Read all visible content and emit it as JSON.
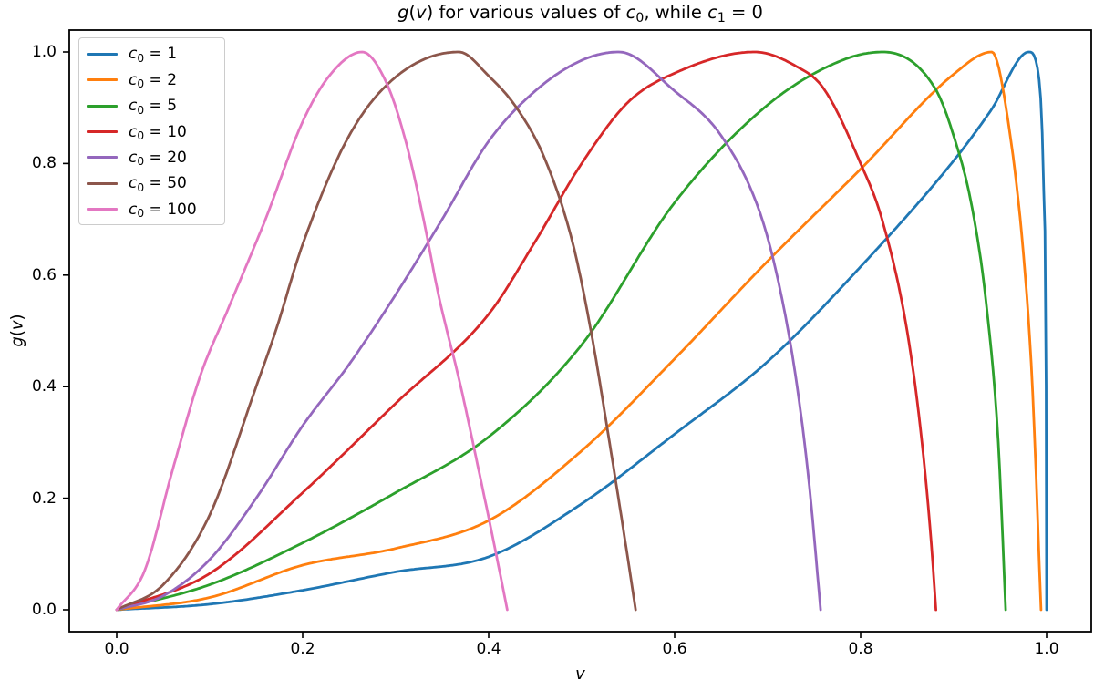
{
  "title_runs": [
    {
      "t": "g",
      "i": true
    },
    {
      "t": "("
    },
    {
      "t": "v",
      "i": true
    },
    {
      "t": ") for various values of "
    },
    {
      "t": "c",
      "i": true
    },
    {
      "t": "0",
      "sub": true
    },
    {
      "t": ", while "
    },
    {
      "t": "c",
      "i": true
    },
    {
      "t": "1",
      "sub": true
    },
    {
      "t": " = 0"
    }
  ],
  "axes": {
    "x": {
      "label_runs": [
        {
          "t": "v",
          "i": true
        }
      ],
      "ticks": [
        0.0,
        0.2,
        0.4,
        0.6,
        0.8,
        1.0
      ],
      "tick_labels": [
        "0.0",
        "0.2",
        "0.4",
        "0.6",
        "0.8",
        "1.0"
      ]
    },
    "y": {
      "label_runs": [
        {
          "t": "g",
          "i": true
        },
        {
          "t": "("
        },
        {
          "t": "v",
          "i": true
        },
        {
          "t": ")"
        }
      ],
      "ticks": [
        0.0,
        0.2,
        0.4,
        0.6,
        0.8,
        1.0
      ],
      "tick_labels": [
        "0.0",
        "0.2",
        "0.4",
        "0.6",
        "0.8",
        "1.0"
      ]
    }
  },
  "legend": {
    "entries": [
      {
        "color": "#1f77b4",
        "label_runs": [
          {
            "t": "c",
            "i": true
          },
          {
            "t": "0",
            "sub": true
          },
          {
            "t": " = 1"
          }
        ]
      },
      {
        "color": "#ff7f0e",
        "label_runs": [
          {
            "t": "c",
            "i": true
          },
          {
            "t": "0",
            "sub": true
          },
          {
            "t": " = 2"
          }
        ]
      },
      {
        "color": "#2ca02c",
        "label_runs": [
          {
            "t": "c",
            "i": true
          },
          {
            "t": "0",
            "sub": true
          },
          {
            "t": " = 5"
          }
        ]
      },
      {
        "color": "#d62728",
        "label_runs": [
          {
            "t": "c",
            "i": true
          },
          {
            "t": "0",
            "sub": true
          },
          {
            "t": " = 10"
          }
        ]
      },
      {
        "color": "#9467bd",
        "label_runs": [
          {
            "t": "c",
            "i": true
          },
          {
            "t": "0",
            "sub": true
          },
          {
            "t": " = 20"
          }
        ]
      },
      {
        "color": "#8c564b",
        "label_runs": [
          {
            "t": "c",
            "i": true
          },
          {
            "t": "0",
            "sub": true
          },
          {
            "t": " = 50"
          }
        ]
      },
      {
        "color": "#e377c2",
        "label_runs": [
          {
            "t": "c",
            "i": true
          },
          {
            "t": "0",
            "sub": true
          },
          {
            "t": " = 100"
          }
        ]
      }
    ]
  },
  "chart_data": {
    "type": "line",
    "title": "g(v) for various values of c0, while c1 = 0",
    "xlabel": "v",
    "ylabel": "g(v)",
    "xlim": [
      -0.051,
      1.048
    ],
    "ylim": [
      -0.039,
      1.039
    ],
    "xticks": [
      0.0,
      0.2,
      0.4,
      0.6,
      0.8,
      1.0
    ],
    "yticks": [
      0.0,
      0.2,
      0.4,
      0.6,
      0.8,
      1.0
    ],
    "grid": false,
    "legend_position": "upper left",
    "series": [
      {
        "name": "c0 = 1",
        "color": "#1f77b4",
        "peak": [
          0.981,
          1.0
        ],
        "zero_at": 1.0,
        "points": [
          [
            0,
            0
          ],
          [
            0.1,
            0.01
          ],
          [
            0.2,
            0.035
          ],
          [
            0.3,
            0.068
          ],
          [
            0.4,
            0.095
          ],
          [
            0.5,
            0.19
          ],
          [
            0.6,
            0.315
          ],
          [
            0.7,
            0.445
          ],
          [
            0.8,
            0.615
          ],
          [
            0.9,
            0.805
          ],
          [
            0.94,
            0.895
          ],
          [
            0.981,
            1.0
          ],
          [
            0.992,
            0.95
          ],
          [
            0.997,
            0.75
          ],
          [
            0.9995,
            0.4
          ],
          [
            1.0,
            0
          ]
        ]
      },
      {
        "name": "c0 = 2",
        "color": "#ff7f0e",
        "peak": [
          0.941,
          1.0
        ],
        "zero_at": 0.994,
        "points": [
          [
            0,
            0
          ],
          [
            0.1,
            0.022
          ],
          [
            0.2,
            0.08
          ],
          [
            0.3,
            0.11
          ],
          [
            0.4,
            0.16
          ],
          [
            0.5,
            0.285
          ],
          [
            0.6,
            0.45
          ],
          [
            0.7,
            0.625
          ],
          [
            0.8,
            0.79
          ],
          [
            0.9,
            0.96
          ],
          [
            0.941,
            1.0
          ],
          [
            0.96,
            0.86
          ],
          [
            0.977,
            0.6
          ],
          [
            0.985,
            0.39
          ],
          [
            0.994,
            0
          ]
        ]
      },
      {
        "name": "c0 = 5",
        "color": "#2ca02c",
        "peak": [
          0.824,
          1.0
        ],
        "zero_at": 0.956,
        "points": [
          [
            0,
            0
          ],
          [
            0.1,
            0.045
          ],
          [
            0.2,
            0.12
          ],
          [
            0.3,
            0.21
          ],
          [
            0.4,
            0.31
          ],
          [
            0.5,
            0.475
          ],
          [
            0.6,
            0.73
          ],
          [
            0.7,
            0.905
          ],
          [
            0.78,
            0.985
          ],
          [
            0.824,
            1.0
          ],
          [
            0.88,
            0.935
          ],
          [
            0.9,
            0.85
          ],
          [
            0.92,
            0.72
          ],
          [
            0.935,
            0.55
          ],
          [
            0.948,
            0.3
          ],
          [
            0.956,
            0
          ]
        ]
      },
      {
        "name": "c0 = 10",
        "color": "#d62728",
        "peak": [
          0.686,
          1.0
        ],
        "zero_at": 0.881,
        "points": [
          [
            0,
            0
          ],
          [
            0.1,
            0.065
          ],
          [
            0.2,
            0.21
          ],
          [
            0.3,
            0.37
          ],
          [
            0.4,
            0.53
          ],
          [
            0.45,
            0.66
          ],
          [
            0.5,
            0.8
          ],
          [
            0.55,
            0.91
          ],
          [
            0.6,
            0.962
          ],
          [
            0.686,
            1.0
          ],
          [
            0.73,
            0.975
          ],
          [
            0.76,
            0.935
          ],
          [
            0.8,
            0.8
          ],
          [
            0.823,
            0.7
          ],
          [
            0.85,
            0.5
          ],
          [
            0.866,
            0.3
          ],
          [
            0.876,
            0.12
          ],
          [
            0.881,
            0
          ]
        ]
      },
      {
        "name": "c0 = 20",
        "color": "#9467bd",
        "peak": [
          0.54,
          1.0
        ],
        "zero_at": 0.757,
        "points": [
          [
            0,
            0
          ],
          [
            0.05,
            0.025
          ],
          [
            0.1,
            0.09
          ],
          [
            0.15,
            0.2
          ],
          [
            0.2,
            0.33
          ],
          [
            0.25,
            0.44
          ],
          [
            0.3,
            0.565
          ],
          [
            0.35,
            0.7
          ],
          [
            0.4,
            0.84
          ],
          [
            0.45,
            0.93
          ],
          [
            0.5,
            0.985
          ],
          [
            0.54,
            1.0
          ],
          [
            0.6,
            0.93
          ],
          [
            0.65,
            0.85
          ],
          [
            0.69,
            0.72
          ],
          [
            0.71,
            0.6
          ],
          [
            0.73,
            0.42
          ],
          [
            0.745,
            0.22
          ],
          [
            0.757,
            0
          ]
        ]
      },
      {
        "name": "c0 = 50",
        "color": "#8c564b",
        "peak": [
          0.368,
          1.0
        ],
        "zero_at": 0.558,
        "points": [
          [
            0,
            0
          ],
          [
            0.05,
            0.045
          ],
          [
            0.1,
            0.17
          ],
          [
            0.15,
            0.4
          ],
          [
            0.171,
            0.5
          ],
          [
            0.2,
            0.655
          ],
          [
            0.25,
            0.85
          ],
          [
            0.3,
            0.955
          ],
          [
            0.368,
            1.0
          ],
          [
            0.4,
            0.957
          ],
          [
            0.43,
            0.9
          ],
          [
            0.46,
            0.81
          ],
          [
            0.49,
            0.66
          ],
          [
            0.51,
            0.5
          ],
          [
            0.53,
            0.3
          ],
          [
            0.548,
            0.11
          ],
          [
            0.558,
            0
          ]
        ]
      },
      {
        "name": "c0 = 100",
        "color": "#e377c2",
        "peak": [
          0.264,
          1.0
        ],
        "zero_at": 0.42,
        "points": [
          [
            0,
            0
          ],
          [
            0.03,
            0.07
          ],
          [
            0.06,
            0.25
          ],
          [
            0.09,
            0.42
          ],
          [
            0.12,
            0.54
          ],
          [
            0.16,
            0.7
          ],
          [
            0.2,
            0.875
          ],
          [
            0.23,
            0.96
          ],
          [
            0.264,
            1.0
          ],
          [
            0.29,
            0.945
          ],
          [
            0.31,
            0.845
          ],
          [
            0.33,
            0.7
          ],
          [
            0.346,
            0.565
          ],
          [
            0.37,
            0.4
          ],
          [
            0.39,
            0.245
          ],
          [
            0.405,
            0.125
          ],
          [
            0.42,
            0
          ]
        ]
      }
    ]
  }
}
